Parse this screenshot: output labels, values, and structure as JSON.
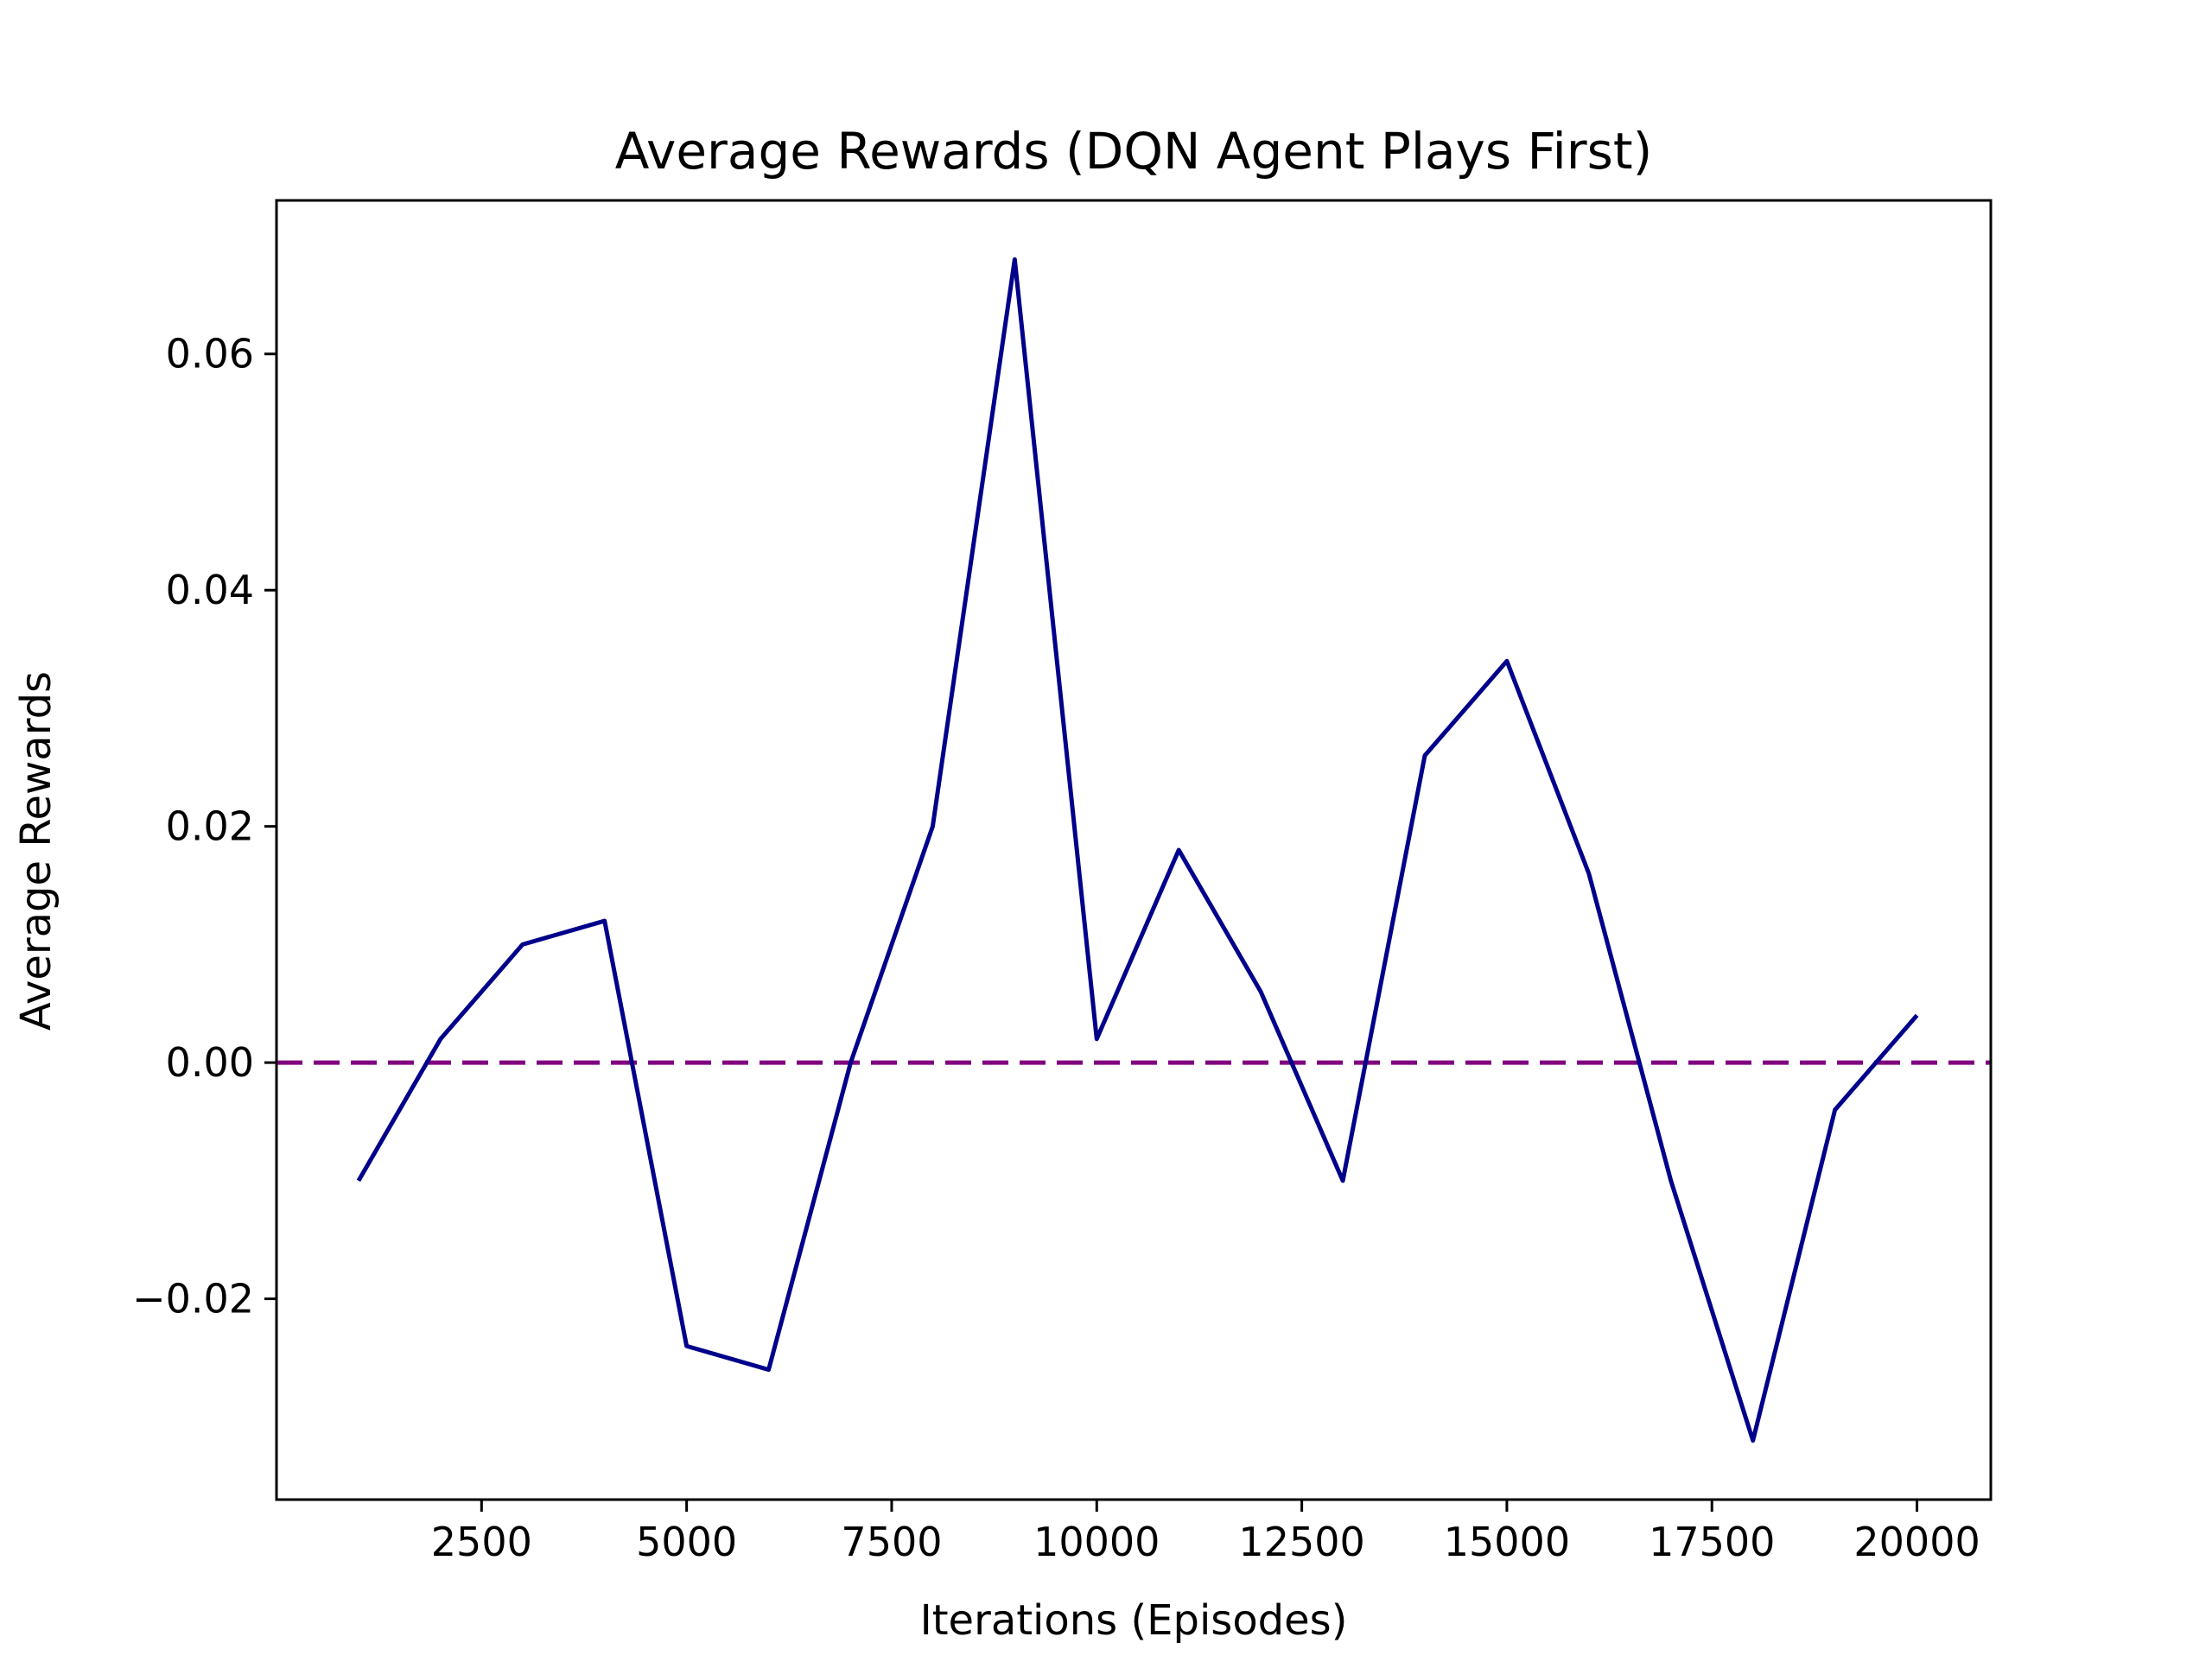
{
  "chart_data": {
    "type": "line",
    "title": "Average Rewards (DQN Agent Plays First)",
    "xlabel": "Iterations (Episodes)",
    "ylabel": "Average Rewards",
    "xlim": [
      0,
      20900
    ],
    "ylim": [
      -0.037,
      0.073
    ],
    "x_ticks": [
      2500,
      5000,
      7500,
      10000,
      12500,
      15000,
      17500,
      20000
    ],
    "x_tick_labels": [
      "2500",
      "5000",
      "7500",
      "10000",
      "12500",
      "15000",
      "17500",
      "20000"
    ],
    "y_ticks": [
      -0.02,
      0.0,
      0.02,
      0.04,
      0.06
    ],
    "y_tick_labels": [
      "−0.02",
      "0.00",
      "0.02",
      "0.04",
      "0.06"
    ],
    "grid": false,
    "series": [
      {
        "color": "#00008b",
        "x": [
          1000,
          2000,
          3000,
          4000,
          5000,
          6000,
          7000,
          8000,
          9000,
          10000,
          11000,
          12000,
          13000,
          14000,
          15000,
          16000,
          17000,
          18000,
          19000,
          20000
        ],
        "y": [
          -0.01,
          0.002,
          0.01,
          0.012,
          -0.024,
          -0.026,
          0.0,
          0.02,
          0.068,
          0.002,
          0.018,
          0.006,
          -0.01,
          0.026,
          0.034,
          0.016,
          -0.01,
          -0.032,
          -0.004,
          0.004
        ]
      }
    ],
    "reference_line": {
      "y": 0.0,
      "style": "dashed",
      "color": "#800080"
    }
  }
}
